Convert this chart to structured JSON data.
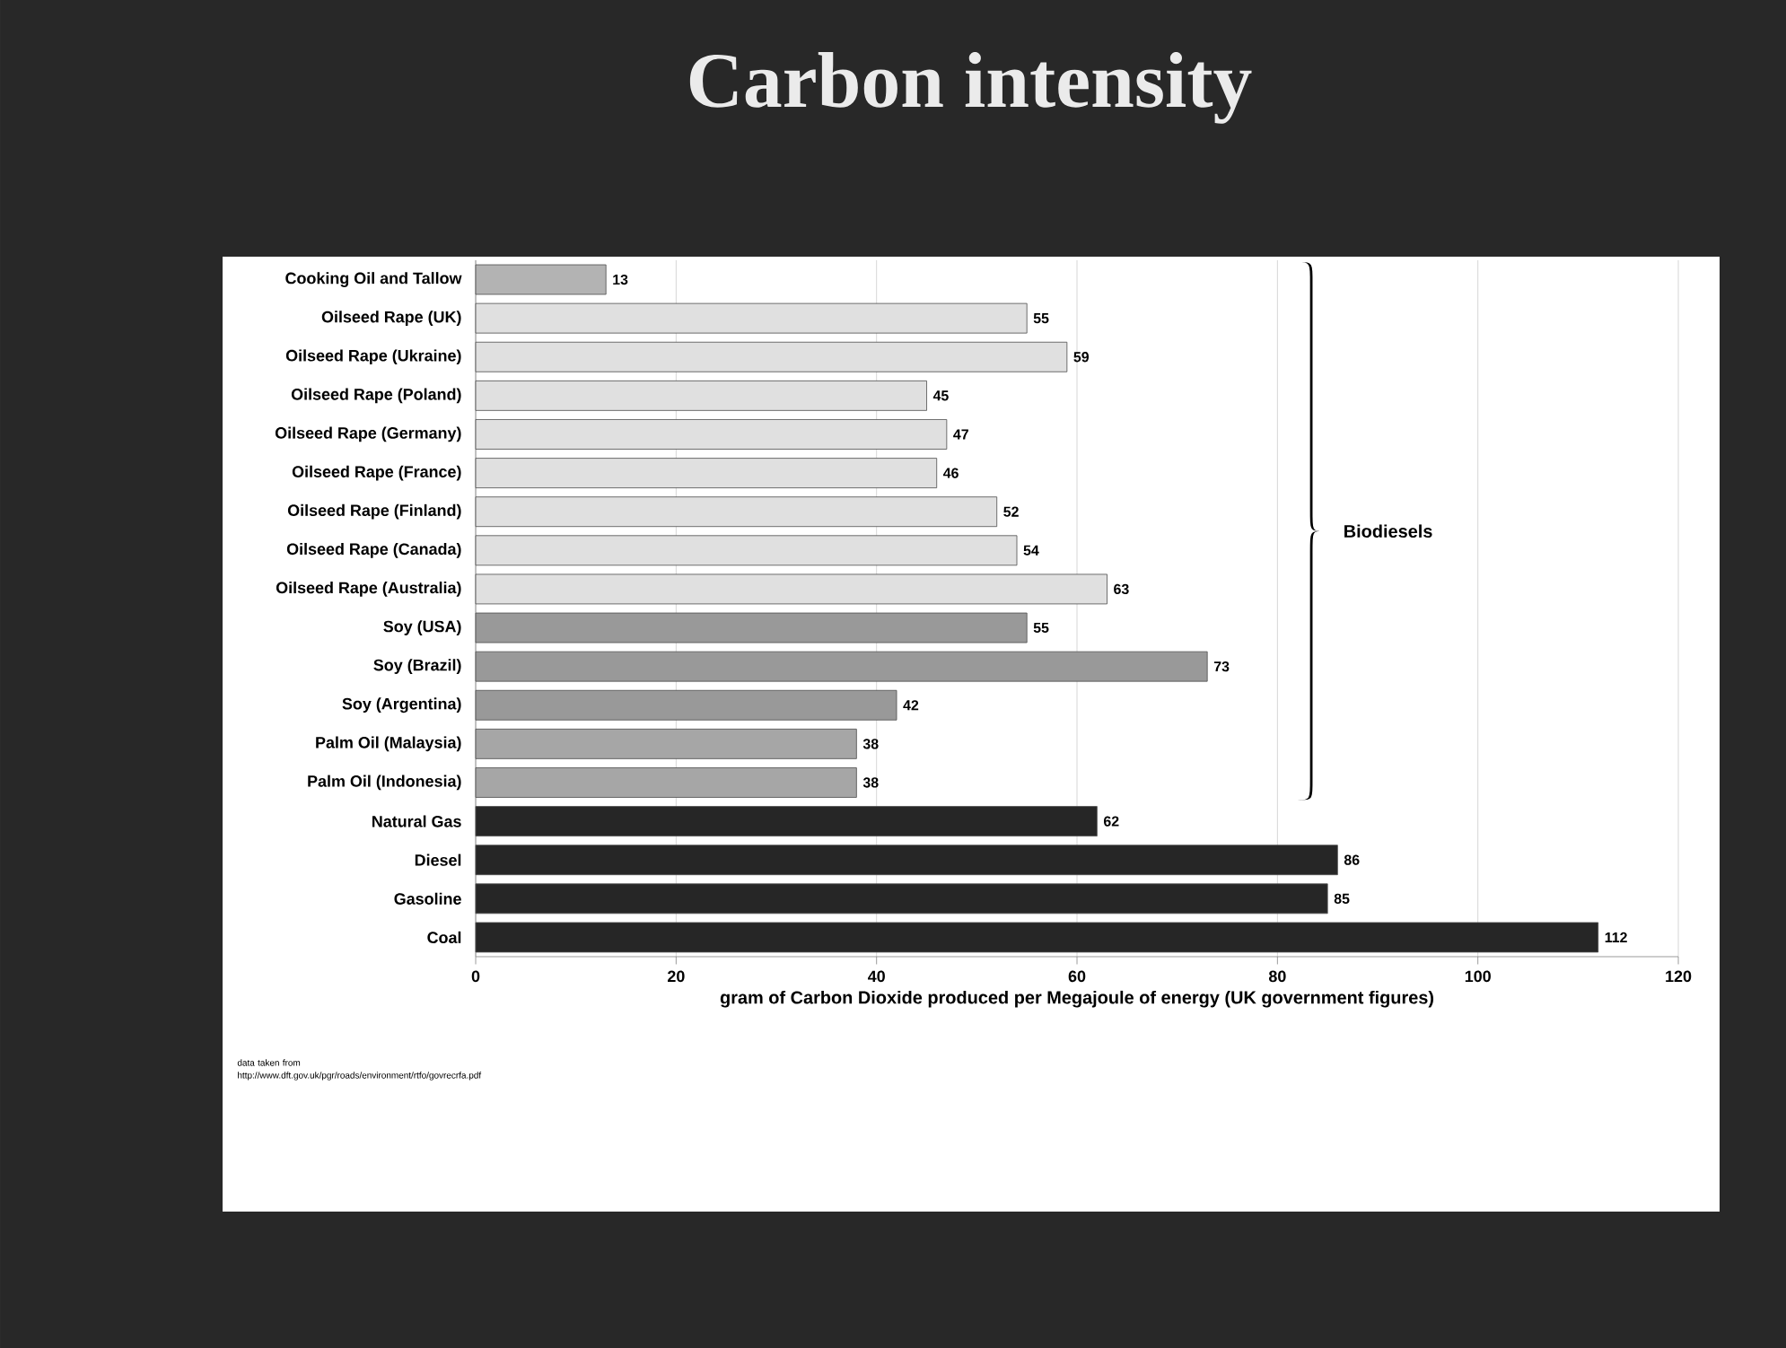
{
  "chart_data": {
    "type": "bar",
    "orientation": "horizontal",
    "title": "Carbon intensity",
    "xlabel": "gram of Carbon Dioxide produced per Megajoule of energy (UK government figures)",
    "categories": [
      "Cooking Oil and Tallow",
      "Oilseed Rape (UK)",
      "Oilseed Rape (Ukraine)",
      "Oilseed Rape (Poland)",
      "Oilseed Rape (Germany)",
      "Oilseed Rape (France)",
      "Oilseed Rape (Finland)",
      "Oilseed Rape (Canada)",
      "Oilseed Rape (Australia)",
      "Soy (USA)",
      "Soy (Brazil)",
      "Soy (Argentina)",
      "Palm Oil (Malaysia)",
      "Palm Oil (Indonesia)",
      "Natural Gas",
      "Diesel",
      "Gasoline",
      "Coal"
    ],
    "values": [
      13,
      55,
      59,
      45,
      47,
      46,
      52,
      54,
      63,
      55,
      73,
      42,
      38,
      38,
      62,
      86,
      85,
      112
    ],
    "colors": [
      "#b3b3b3",
      "#e0e0e0",
      "#e0e0e0",
      "#e0e0e0",
      "#e0e0e0",
      "#e0e0e0",
      "#e0e0e0",
      "#e0e0e0",
      "#e0e0e0",
      "#999999",
      "#999999",
      "#999999",
      "#a6a6a6",
      "#a6a6a6",
      "#262626",
      "#262626",
      "#262626",
      "#262626"
    ],
    "data_labels": true,
    "xlim": [
      0,
      120
    ],
    "xticks": [
      0,
      20,
      40,
      60,
      80,
      100,
      120
    ],
    "grid": "x",
    "annotations": [
      "Biodiesels",
      "data taken from http://www.dft.gov.uk/pgr/roads/environment/rtfo/govrecrfa.pdf"
    ]
  }
}
